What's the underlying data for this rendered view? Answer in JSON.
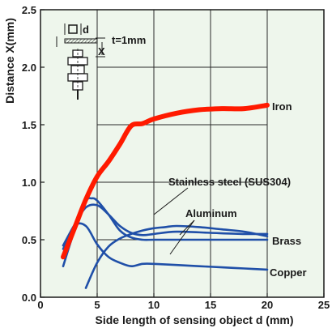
{
  "chart_data": {
    "type": "line",
    "xlabel": "Side length of sensing object d (mm)",
    "ylabel": "Distance X(mm)",
    "xlim": [
      0,
      25
    ],
    "ylim": [
      0,
      2.5
    ],
    "xticks": [
      0,
      5,
      10,
      15,
      20,
      25
    ],
    "yticks": [
      0.0,
      0.5,
      1.0,
      1.5,
      2.0,
      2.5
    ],
    "xtick_labels": [
      "0",
      "5",
      "10",
      "15",
      "20",
      "25"
    ],
    "ytick_labels": [
      "0.0",
      "0.5",
      "1.0",
      "1.5",
      "2.0",
      "2.5"
    ],
    "grid": true,
    "grid_region": {
      "x": [
        5,
        20
      ],
      "y": [
        0,
        2.5
      ]
    },
    "background_color": "#eef6ec",
    "series": [
      {
        "name": "Iron",
        "color": "#ff1a00",
        "x": [
          2,
          3,
          4,
          5,
          6,
          7,
          8,
          9,
          10,
          12,
          14,
          16,
          18,
          20
        ],
        "y": [
          0.35,
          0.6,
          0.85,
          1.05,
          1.18,
          1.33,
          1.49,
          1.51,
          1.55,
          1.6,
          1.63,
          1.64,
          1.64,
          1.67
        ]
      },
      {
        "name": "Stainless steel (SUS304)",
        "color": "#1f4fa8",
        "x": [
          2,
          3,
          4,
          5,
          6,
          7,
          8,
          9,
          10,
          12,
          15,
          18,
          20
        ],
        "y": [
          0.45,
          0.63,
          0.78,
          0.8,
          0.72,
          0.62,
          0.56,
          0.54,
          0.55,
          0.57,
          0.56,
          0.55,
          0.55
        ]
      },
      {
        "name": "Aluminum",
        "color": "#1f4fa8",
        "x": [
          4,
          5,
          6,
          7,
          8,
          9,
          10,
          11,
          12,
          14,
          16,
          18,
          20
        ],
        "y": [
          0.08,
          0.3,
          0.44,
          0.51,
          0.55,
          0.58,
          0.6,
          0.61,
          0.62,
          0.61,
          0.59,
          0.57,
          0.53
        ]
      },
      {
        "name": "Brass",
        "color": "#1f4fa8",
        "x": [
          2,
          3,
          4,
          4.5,
          5,
          6,
          7,
          8,
          9,
          10,
          12,
          14,
          16,
          18,
          20
        ],
        "y": [
          0.27,
          0.58,
          0.83,
          0.86,
          0.84,
          0.72,
          0.58,
          0.52,
          0.5,
          0.5,
          0.5,
          0.5,
          0.5,
          0.5,
          0.5
        ]
      },
      {
        "name": "Copper",
        "color": "#1f4fa8",
        "x": [
          2,
          3,
          4,
          5,
          6,
          7,
          8,
          9,
          10,
          12,
          14,
          16,
          18,
          20
        ],
        "y": [
          0.42,
          0.62,
          0.62,
          0.46,
          0.35,
          0.3,
          0.27,
          0.29,
          0.29,
          0.28,
          0.27,
          0.26,
          0.25,
          0.24
        ]
      }
    ],
    "annotations": {
      "iron": "Iron",
      "stainless": "Stainless steel (SUS304)",
      "aluminum": "Aluminum",
      "brass": "Brass",
      "copper": "Copper",
      "inset_d": "d",
      "inset_x": "X",
      "inset_t": "t=1mm"
    }
  }
}
